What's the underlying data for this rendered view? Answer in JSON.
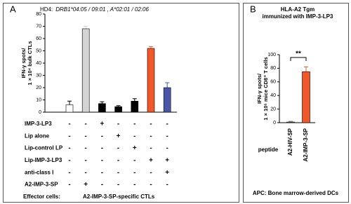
{
  "chart_data": [
    {
      "type": "bar",
      "panel": "A",
      "subtitle": [
        "HD4:",
        "DRB1*04:05 / 09:01 , A*02:01 / 02:06"
      ],
      "y_label": [
        "IFN-γ spots/",
        "1 × 10⁴ bulk CTLs"
      ],
      "categories": [
        null,
        null,
        null,
        null,
        null,
        null,
        null
      ],
      "values": [
        6,
        68,
        7,
        4.5,
        9,
        52,
        20
      ],
      "errors": [
        3,
        2,
        1.5,
        0.8,
        2,
        1.5,
        4
      ],
      "colors": [
        "#ffffff",
        "#d4d4d4",
        "#000000",
        "#000000",
        "#000000",
        "#f0582a",
        "#4a57a8"
      ],
      "ylim": [
        0,
        80
      ],
      "yticks": [
        0,
        10,
        20,
        30,
        40,
        50,
        60,
        70,
        80
      ],
      "conditions": [
        {
          "label": "IMP-3-LP3",
          "signs": [
            "-",
            "-",
            "+",
            "-",
            "-",
            "-",
            "-"
          ]
        },
        {
          "label": "Lip alone",
          "signs": [
            "-",
            "-",
            "-",
            "+",
            "-",
            "-",
            "-"
          ]
        },
        {
          "label": "Lip-control LP",
          "signs": [
            "-",
            "-",
            "-",
            "-",
            "+",
            "-",
            "-"
          ]
        },
        {
          "label": "Lip-IMP-3-LP3",
          "signs": [
            "-",
            "-",
            "-",
            "-",
            "-",
            "+",
            "+"
          ],
          "plus_color": "#e8202a"
        },
        {
          "label": "anti-class I",
          "signs": [
            "-",
            "-",
            "-",
            "-",
            "-",
            "-",
            "+"
          ],
          "plus_color": "#e8202a"
        },
        {
          "label": "A2-IMP-3-SP",
          "signs": [
            "-",
            "+",
            "-",
            "-",
            "-",
            "-",
            "-"
          ]
        }
      ],
      "footer": [
        "Effector cells:",
        "A2-IMP-3-SP-specific CTLs"
      ]
    },
    {
      "type": "bar",
      "panel": "B",
      "title": [
        "HLA-A2 Tgm",
        "immunized with IMP-3-LP3"
      ],
      "y_label": [
        "IFN-γ spots/",
        "1 × 10⁵ mice CD8⁺ T cells"
      ],
      "categories": [
        "A2-HIV-SP",
        "A2-IMP-3-SP"
      ],
      "values": [
        1,
        75
      ],
      "errors": [
        1,
        7
      ],
      "colors": [
        "#888888",
        "#f0582a"
      ],
      "ylim": [
        0,
        100
      ],
      "yticks": [
        0,
        20,
        40,
        60,
        80,
        100
      ],
      "significance": "**",
      "x_label": "peptide",
      "footer": "APC: Bone marrow-derived DCs"
    }
  ]
}
